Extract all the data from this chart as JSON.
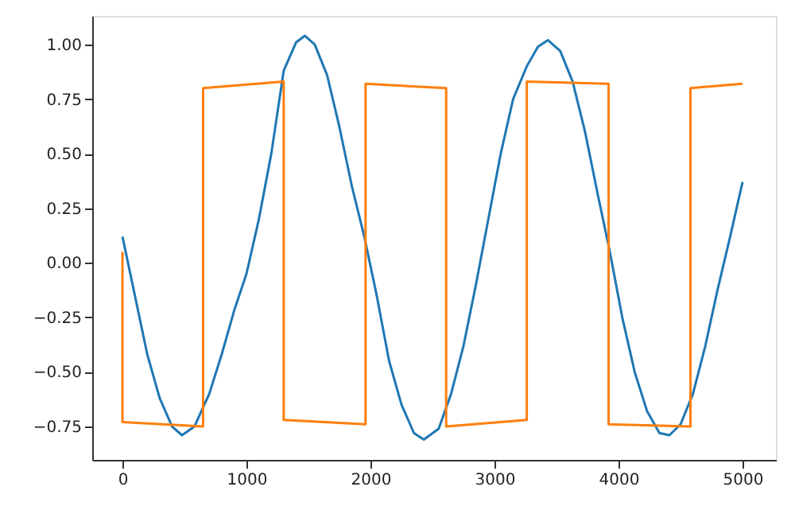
{
  "chart_data": {
    "type": "line",
    "xlim": [
      -244,
      5269
    ],
    "ylim": [
      -0.903,
      1.131
    ],
    "xticks": [
      0,
      1000,
      2000,
      3000,
      4000,
      5000
    ],
    "yticks": [
      {
        "value": -0.75,
        "label": "−0.75"
      },
      {
        "value": -0.5,
        "label": "−0.50"
      },
      {
        "value": -0.25,
        "label": "−0.25"
      },
      {
        "value": 0,
        "label": "0.00"
      },
      {
        "value": 0.25,
        "label": "0.25"
      },
      {
        "value": 0.5,
        "label": "0.50"
      },
      {
        "value": 0.75,
        "label": "0.75"
      },
      {
        "value": 1,
        "label": "1.00"
      }
    ],
    "grid": false,
    "legend": false,
    "marker": "none",
    "line_style": "solid",
    "series": [
      {
        "color": "#1f77b4",
        "x": [
          0,
          100,
          200,
          300,
          400,
          480,
          580,
          700,
          800,
          900,
          1000,
          1100,
          1200,
          1300,
          1400,
          1470,
          1550,
          1650,
          1750,
          1850,
          1950,
          2050,
          2150,
          2250,
          2350,
          2430,
          2550,
          2650,
          2750,
          2850,
          2950,
          3050,
          3150,
          3260,
          3350,
          3430,
          3530,
          3630,
          3730,
          3830,
          3930,
          4030,
          4130,
          4230,
          4330,
          4410,
          4500,
          4600,
          4700,
          4800,
          4900,
          5000
        ],
        "values": [
          0.12,
          -0.15,
          -0.42,
          -0.62,
          -0.75,
          -0.79,
          -0.75,
          -0.6,
          -0.42,
          -0.22,
          -0.05,
          0.2,
          0.5,
          0.88,
          1.01,
          1.04,
          1.0,
          0.86,
          0.62,
          0.35,
          0.12,
          -0.15,
          -0.45,
          -0.65,
          -0.78,
          -0.81,
          -0.76,
          -0.6,
          -0.38,
          -0.1,
          0.2,
          0.5,
          0.75,
          0.9,
          0.99,
          1.02,
          0.97,
          0.83,
          0.6,
          0.32,
          0.05,
          -0.25,
          -0.5,
          -0.68,
          -0.78,
          -0.79,
          -0.74,
          -0.6,
          -0.38,
          -0.12,
          0.12,
          0.37
        ]
      },
      {
        "color": "#ff7f0e",
        "x": [
          0,
          0,
          650,
          650,
          1300,
          1300,
          1960,
          1960,
          2610,
          2610,
          3260,
          3260,
          3920,
          3920,
          4580,
          4580,
          5000
        ],
        "values": [
          0.05,
          -0.73,
          -0.75,
          0.8,
          0.83,
          -0.72,
          -0.74,
          0.82,
          0.8,
          -0.75,
          -0.72,
          0.83,
          0.82,
          -0.74,
          -0.75,
          0.8,
          0.82
        ]
      }
    ]
  }
}
